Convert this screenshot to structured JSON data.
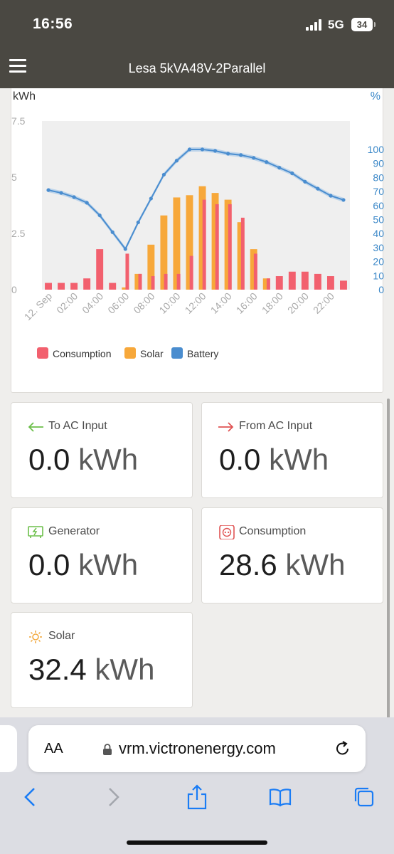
{
  "status_bar": {
    "time": "16:56",
    "network": "5G",
    "battery": "34"
  },
  "app_bar": {
    "title": "Lesa 5kVA48V-2Parallel"
  },
  "chart_data": {
    "type": "bar",
    "left_axis_unit": "kWh",
    "right_axis_unit": "%",
    "left_ticks": [
      "7.5",
      "5",
      "2.5",
      "0"
    ],
    "left_ylim": [
      0,
      7.5
    ],
    "right_ticks": [
      "100",
      "90",
      "80",
      "70",
      "60",
      "50",
      "40",
      "30",
      "20",
      "10",
      "0"
    ],
    "right_ylim": [
      0,
      100
    ],
    "x_ticks": [
      "12. Sep",
      "02:00",
      "04:00",
      "06:00",
      "08:00",
      "10:00",
      "12:00",
      "14:00",
      "16:00",
      "18:00",
      "20:00",
      "22:00"
    ],
    "hours": [
      0,
      1,
      2,
      3,
      4,
      5,
      6,
      7,
      8,
      9,
      10,
      11,
      12,
      13,
      14,
      15,
      16,
      17,
      18,
      19,
      20,
      21,
      22,
      23
    ],
    "series": [
      {
        "name": "Consumption",
        "color": "#f2606e",
        "values": [
          0.3,
          0.3,
          0.3,
          0.5,
          1.8,
          0.3,
          1.6,
          0.7,
          0.6,
          0.7,
          0.7,
          1.5,
          4.0,
          3.8,
          3.8,
          3.2,
          1.6,
          0.5,
          0.6,
          0.8,
          0.8,
          0.7,
          0.6,
          0.4
        ]
      },
      {
        "name": "Solar",
        "color": "#f7a83a",
        "values": [
          0,
          0,
          0,
          0,
          0,
          0,
          0.1,
          0.7,
          2.0,
          3.3,
          4.1,
          4.2,
          4.6,
          4.3,
          4.0,
          3.0,
          1.8,
          0.5,
          0,
          0,
          0,
          0,
          0,
          0
        ]
      },
      {
        "name": "Battery",
        "color": "#4a8dcf",
        "values": [
          71,
          69,
          66,
          62,
          53,
          41,
          29,
          48,
          65,
          82,
          92,
          100,
          100,
          99,
          97,
          96,
          94,
          91,
          87,
          83,
          77,
          72,
          67,
          64
        ]
      }
    ],
    "legend": [
      "Consumption",
      "Solar",
      "Battery"
    ],
    "legend_position": "bottom-left"
  },
  "tiles": {
    "to_ac_input": {
      "label": "To AC Input",
      "value": "0.0",
      "unit": "kWh"
    },
    "from_ac_input": {
      "label": "From AC Input",
      "value": "0.0",
      "unit": "kWh"
    },
    "generator": {
      "label": "Generator",
      "value": "0.0",
      "unit": "kWh"
    },
    "consumption": {
      "label": "Consumption",
      "value": "28.6",
      "unit": "kWh"
    },
    "solar": {
      "label": "Solar",
      "value": "32.4",
      "unit": "kWh"
    }
  },
  "browser": {
    "text_size": "AA",
    "url": "vrm.victronenergy.com"
  }
}
